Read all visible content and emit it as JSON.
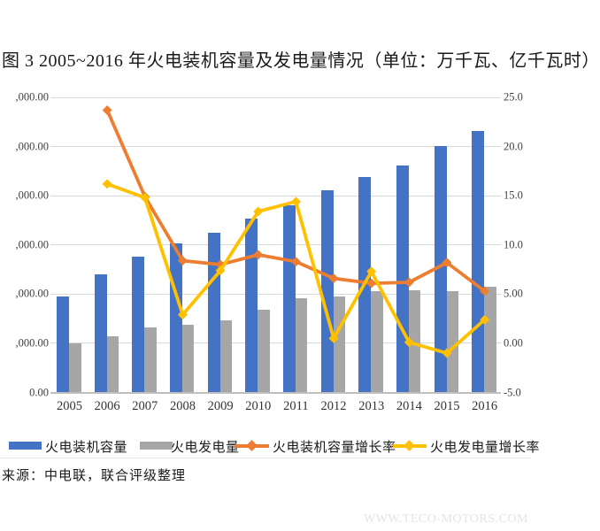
{
  "page": {
    "title": "图 3  2005~2016 年火电装机容量及发电量情况（单位：万千瓦、亿千瓦时）",
    "source": "来源：中电联，联合评级整理",
    "watermark": "WWW.TECO-MOTORS.COM"
  },
  "chart_data": {
    "type": "combo-bar-line",
    "title": "图 3  2005~2016 年火电装机容量及发电量情况（单位：万千瓦、亿千瓦时）",
    "categories": [
      "2005",
      "2006",
      "2007",
      "2008",
      "2009",
      "2010",
      "2011",
      "2012",
      "2013",
      "2014",
      "2015",
      "2016"
    ],
    "series": [
      {
        "key": "capacity-bar",
        "name": "火电装机容量",
        "type": "bar",
        "axis": "left",
        "color": "#4472C4",
        "values": [
          39000,
          48000,
          55300,
          60500,
          65000,
          70800,
          76000,
          82200,
          87600,
          92300,
          100200,
          106400
        ]
      },
      {
        "key": "generation-bar",
        "name": "火电发电量",
        "type": "bar",
        "axis": "left",
        "color": "#A6A6A6",
        "values": [
          19800,
          22700,
          26300,
          27400,
          29200,
          33500,
          38200,
          38900,
          41100,
          41400,
          41100,
          42900
        ]
      },
      {
        "key": "capacity-growth-line",
        "name": "火电装机容量增长率",
        "type": "line",
        "axis": "right",
        "color": "#ED7D31",
        "values": [
          null,
          23.7,
          14.9,
          8.4,
          8.0,
          9.0,
          8.3,
          6.6,
          6.1,
          6.2,
          8.2,
          5.3
        ]
      },
      {
        "key": "generation-growth-line",
        "name": "火电发电量增长率",
        "type": "line",
        "axis": "right",
        "color": "#FFC000",
        "values": [
          null,
          16.2,
          14.8,
          2.9,
          7.4,
          13.4,
          14.4,
          0.5,
          7.3,
          0.1,
          -1.0,
          2.4
        ]
      }
    ],
    "left_axis": {
      "visible_labels": [
        ",000.00",
        ",000.00",
        ",000.00",
        ",000.00",
        ",000.00",
        ",000.00",
        "0.00"
      ],
      "range": [
        0,
        120000
      ],
      "tick_step": 20000
    },
    "right_axis": {
      "visible_labels": [
        "25.0",
        "20.0",
        "15.0",
        "10.0",
        "5.00",
        "0.00",
        "-5.0"
      ],
      "range": [
        -5,
        25
      ],
      "tick_step": 5
    },
    "grid": true,
    "legend_position": "bottom"
  },
  "legend": {
    "items": [
      {
        "label": "火电装机容量",
        "swatch": "bar",
        "color": "#4472C4"
      },
      {
        "label": "火电发电量",
        "swatch": "bar",
        "color": "#A6A6A6"
      },
      {
        "label": "火电装机容量增长率",
        "swatch": "line",
        "color": "#ED7D31"
      },
      {
        "label": "火电发电量增长率",
        "swatch": "line",
        "color": "#FFC000"
      }
    ]
  }
}
